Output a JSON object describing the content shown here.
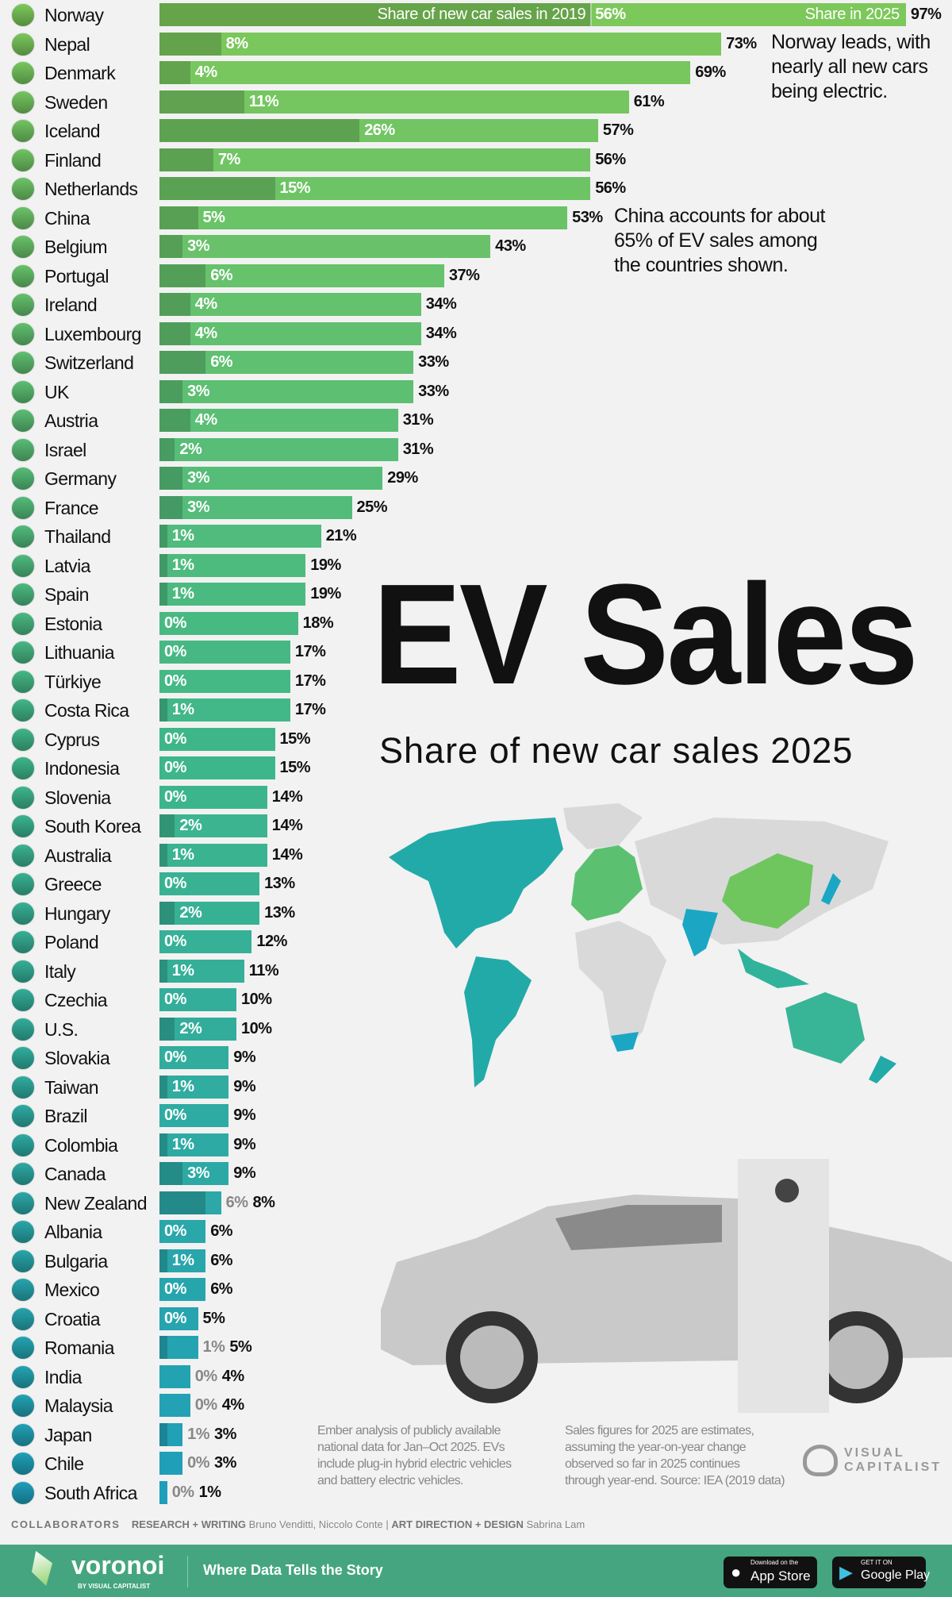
{
  "title": "EV Sales",
  "subtitle": "Share of new car sales 2025",
  "legend": {
    "y2019": "Share of new car sales in 2019",
    "y2025": "Share in 2025"
  },
  "annotations": {
    "norway": [
      "Norway leads, with",
      "nearly all new cars",
      "being electric."
    ],
    "china": [
      "China accounts for about",
      "65% of EV sales among",
      "the countries shown."
    ]
  },
  "notes": {
    "left": [
      "Ember analysis of publicly available",
      "national data for Jan–Oct 2025. EVs",
      "include plug-in hybrid electric vehicles",
      "and battery electric vehicles."
    ],
    "right": [
      "Sales figures for 2025 are estimates,",
      "assuming the year-on-year change",
      "observed so far in 2025 continues",
      "through year-end. Source: IEA (2019 data)"
    ]
  },
  "brand": {
    "logo_text": "VISUAL CAPITALIST"
  },
  "collaborators": {
    "label": "COLLABORATORS",
    "research_label": "RESEARCH + WRITING",
    "research": "Bruno Venditti, Niccolo Conte",
    "sep": "|",
    "design_label": "ART DIRECTION + DESIGN",
    "design": "Sabrina Lam"
  },
  "footer": {
    "logo": "voronoi",
    "logo_sub": "BY VISUAL CAPITALIST",
    "tagline": "Where Data Tells the Story",
    "appstore_small": "Download on the",
    "appstore": "App Store",
    "googleplay_small": "GET IT ON",
    "googleplay": "Google Play"
  },
  "colors": {
    "top": "#7cc85a",
    "mid": "#3eb68a",
    "bottom": "#1e9fba",
    "background": "#f2f2f2",
    "footer": "#45a581",
    "map_gray": "#d9d9d9"
  },
  "chart_data": {
    "type": "bar",
    "orientation": "horizontal",
    "title": "EV Sales",
    "subtitle": "Share of new car sales 2025",
    "unit": "%",
    "categories": [
      "Norway",
      "Nepal",
      "Denmark",
      "Sweden",
      "Iceland",
      "Finland",
      "Netherlands",
      "China",
      "Belgium",
      "Portugal",
      "Ireland",
      "Luxembourg",
      "Switzerland",
      "UK",
      "Austria",
      "Israel",
      "Germany",
      "France",
      "Thailand",
      "Latvia",
      "Spain",
      "Estonia",
      "Lithuania",
      "Türkiye",
      "Costa Rica",
      "Cyprus",
      "Indonesia",
      "Slovenia",
      "South Korea",
      "Australia",
      "Greece",
      "Hungary",
      "Poland",
      "Italy",
      "Czechia",
      "U.S.",
      "Slovakia",
      "Taiwan",
      "Brazil",
      "Colombia",
      "Canada",
      "New Zealand",
      "Albania",
      "Bulgaria",
      "Mexico",
      "Croatia",
      "Romania",
      "India",
      "Malaysia",
      "Japan",
      "Chile",
      "South Africa"
    ],
    "series": [
      {
        "name": "Share of new car sales in 2019",
        "values": [
          56,
          8,
          4,
          11,
          26,
          7,
          15,
          5,
          3,
          6,
          4,
          4,
          6,
          3,
          4,
          2,
          3,
          3,
          1,
          1,
          1,
          0,
          0,
          0,
          1,
          0,
          0,
          0,
          2,
          1,
          0,
          2,
          0,
          1,
          0,
          2,
          0,
          1,
          0,
          1,
          3,
          6,
          0,
          1,
          0,
          0,
          1,
          0,
          0,
          1,
          0,
          0
        ]
      },
      {
        "name": "Share in 2025",
        "values": [
          97,
          73,
          69,
          61,
          57,
          56,
          56,
          53,
          43,
          37,
          34,
          34,
          33,
          33,
          31,
          31,
          29,
          25,
          21,
          19,
          19,
          18,
          17,
          17,
          17,
          15,
          15,
          14,
          14,
          14,
          13,
          13,
          12,
          11,
          10,
          10,
          9,
          9,
          9,
          9,
          9,
          8,
          6,
          6,
          6,
          5,
          5,
          4,
          4,
          3,
          3,
          1
        ]
      }
    ],
    "xlim": [
      0,
      100
    ]
  }
}
